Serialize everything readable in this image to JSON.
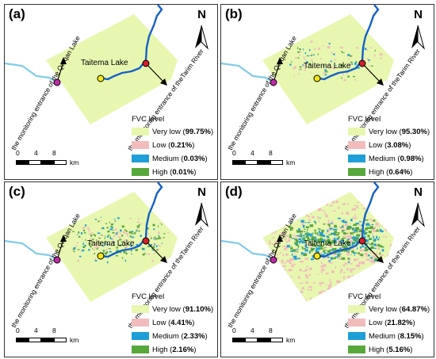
{
  "lake_label": "Taitema Lake",
  "left_annotation": "the monitoring entrance of the Qarqan Lake",
  "right_annotation": "the monitoring entrance of theTarim River",
  "north_label": "N",
  "legend_title": "FVC level",
  "scale": {
    "ticks": [
      "0",
      "4",
      "8"
    ],
    "unit": "km"
  },
  "colors": {
    "very_low": "#e7f7b0",
    "low": "#f2bcbc",
    "medium": "#1f9fd7",
    "high": "#57a83a",
    "river": "#1560c8",
    "tributary": "#7fcbe8",
    "entrance_marker": "#d21d2a",
    "qarqan_marker": "#c02aa8",
    "lake_marker": "#f5e619"
  },
  "panels": [
    {
      "label": "(a)",
      "classes": [
        {
          "name": "Very low",
          "pct": "99.75%"
        },
        {
          "name": "Low",
          "pct": "0.21%"
        },
        {
          "name": "Medium",
          "pct": "0.03%"
        },
        {
          "name": "High",
          "pct": "0.01%"
        }
      ]
    },
    {
      "label": "(b)",
      "classes": [
        {
          "name": "Very low",
          "pct": "95.30%"
        },
        {
          "name": "Low",
          "pct": "3.08%"
        },
        {
          "name": "Medium",
          "pct": "0.98%"
        },
        {
          "name": "High",
          "pct": "0.64%"
        }
      ]
    },
    {
      "label": "(c)",
      "classes": [
        {
          "name": "Very low",
          "pct": "91.10%"
        },
        {
          "name": "Low",
          "pct": "4.41%"
        },
        {
          "name": "Medium",
          "pct": "2.33%"
        },
        {
          "name": "High",
          "pct": "2.16%"
        }
      ]
    },
    {
      "label": "(d)",
      "classes": [
        {
          "name": "Very low",
          "pct": "64.87%"
        },
        {
          "name": "Low",
          "pct": "21.82%"
        },
        {
          "name": "Medium",
          "pct": "8.15%"
        },
        {
          "name": "High",
          "pct": "5.16%"
        }
      ]
    }
  ]
}
